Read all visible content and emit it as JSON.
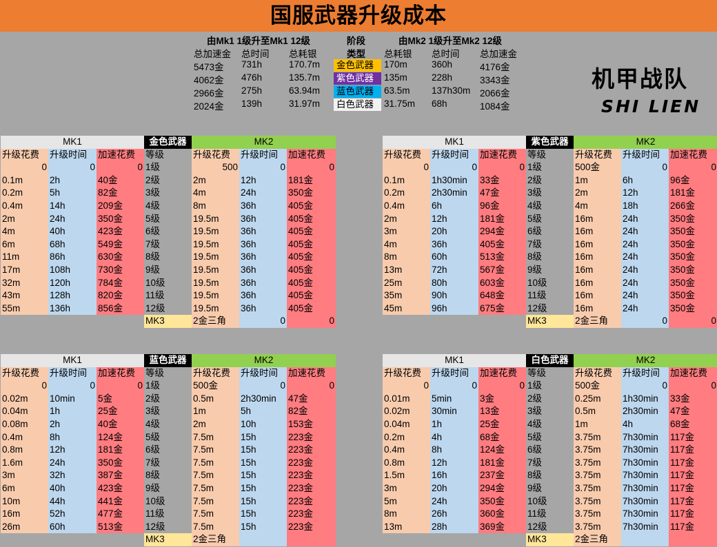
{
  "title": "国服武器升级成本",
  "logo": {
    "cn": "机甲战队",
    "en": "SHI LIEN"
  },
  "summary": {
    "left_header": "由Mk1 1级升至Mk1 12级",
    "mid_header1": "阶段",
    "mid_header2": "类型",
    "right_header": "由Mk2 1级升至Mk2 12级",
    "left_cols": [
      "总加速金",
      "总时间",
      "总耗银"
    ],
    "right_cols": [
      "总耗银",
      "总时间",
      "总加速金"
    ],
    "rows": [
      {
        "l": [
          "5473金",
          "731h",
          "170.7m"
        ],
        "type": "金色武器",
        "color": "#ffc000",
        "r": [
          "170m",
          "360h",
          "4176金"
        ]
      },
      {
        "l": [
          "4062金",
          "476h",
          "135.7m"
        ],
        "type": "紫色武器",
        "color": "#7030a0",
        "r": [
          "135m",
          "228h",
          "3343金"
        ]
      },
      {
        "l": [
          "2966金",
          "275h",
          "63.94m"
        ],
        "type": "蓝色武器",
        "color": "#00b0f0",
        "r": [
          "63.5m",
          "137h30m",
          "2066金"
        ]
      },
      {
        "l": [
          "2024金",
          "139h",
          "31.97m"
        ],
        "type": "白色武器",
        "color": "#f2f2f2",
        "r": [
          "31.75m",
          "68h",
          "1084金"
        ]
      }
    ]
  },
  "colors": {
    "cost": "#f8cbad",
    "time": "#bdd7ee",
    "speed": "#ff7c80",
    "mk1_header": "#e7e6e6",
    "mk2_header": "#92d050",
    "mk3": "#ffe699",
    "level": "#a6a6a6"
  },
  "tables": [
    {
      "type_label": "金色武器",
      "mk1_label": "MK1",
      "mk2_label": "MK2",
      "col_labels": [
        "升级花费",
        "升级时间",
        "加速花费",
        "等级",
        "升级花费",
        "升级时间",
        "加速花费"
      ],
      "rows": [
        [
          "0",
          "0",
          "0",
          "1级",
          "500",
          "0",
          "0"
        ],
        [
          "0.1m",
          "2h",
          "40金",
          "2级",
          "2m",
          "12h",
          "181金"
        ],
        [
          "0.2m",
          "5h",
          "82金",
          "3级",
          "4m",
          "24h",
          "350金"
        ],
        [
          "0.4m",
          "14h",
          "209金",
          "4级",
          "8m",
          "36h",
          "405金"
        ],
        [
          "2m",
          "24h",
          "350金",
          "5级",
          "19.5m",
          "36h",
          "405金"
        ],
        [
          "4m",
          "40h",
          "423金",
          "6级",
          "19.5m",
          "36h",
          "405金"
        ],
        [
          "6m",
          "68h",
          "549金",
          "7级",
          "19.5m",
          "36h",
          "405金"
        ],
        [
          "11m",
          "86h",
          "630金",
          "8级",
          "19.5m",
          "36h",
          "405金"
        ],
        [
          "17m",
          "108h",
          "730金",
          "9级",
          "19.5m",
          "36h",
          "405金"
        ],
        [
          "32m",
          "120h",
          "784金",
          "10级",
          "19.5m",
          "36h",
          "405金"
        ],
        [
          "43m",
          "128h",
          "820金",
          "11级",
          "19.5m",
          "36h",
          "405金"
        ],
        [
          "55m",
          "136h",
          "856金",
          "12级",
          "19.5m",
          "36h",
          "405金"
        ]
      ],
      "mk3_row": [
        "MK3",
        "2金三角",
        "0",
        "0"
      ]
    },
    {
      "type_label": "紫色武器",
      "mk1_label": "MK1",
      "mk2_label": "MK2",
      "col_labels": [
        "升级花费",
        "升级时间",
        "加速花费",
        "等级",
        "升级花费",
        "升级时间",
        "加速花费"
      ],
      "rows": [
        [
          "0",
          "0",
          "0",
          "1级",
          "500金",
          "0",
          "0"
        ],
        [
          "0.1m",
          "1h30min",
          "33金",
          "2级",
          "1m",
          "6h",
          "96金"
        ],
        [
          "0.2m",
          "2h30min",
          "47金",
          "3级",
          "2m",
          "12h",
          "181金"
        ],
        [
          "0.4m",
          "6h",
          "96金",
          "4级",
          "4m",
          "18h",
          "266金"
        ],
        [
          "2m",
          "12h",
          "181金",
          "5级",
          "16m",
          "24h",
          "350金"
        ],
        [
          "3m",
          "20h",
          "294金",
          "6级",
          "16m",
          "24h",
          "350金"
        ],
        [
          "4m",
          "36h",
          "405金",
          "7级",
          "16m",
          "24h",
          "350金"
        ],
        [
          "8m",
          "60h",
          "513金",
          "8级",
          "16m",
          "24h",
          "350金"
        ],
        [
          "13m",
          "72h",
          "567金",
          "9级",
          "16m",
          "24h",
          "350金"
        ],
        [
          "25m",
          "80h",
          "603金",
          "10级",
          "16m",
          "24h",
          "350金"
        ],
        [
          "35m",
          "90h",
          "648金",
          "11级",
          "16m",
          "24h",
          "350金"
        ],
        [
          "45m",
          "96h",
          "675金",
          "12级",
          "16m",
          "24h",
          "350金"
        ]
      ],
      "mk3_row": [
        "MK3",
        "2金三角",
        "0",
        "0"
      ]
    },
    {
      "type_label": "蓝色武器",
      "mk1_label": "MK1",
      "mk2_label": "MK2",
      "col_labels": [
        "升级花费",
        "升级时间",
        "加速花费",
        "等级",
        "升级花费",
        "升级时间",
        "加速花费"
      ],
      "rows": [
        [
          "0",
          "0",
          "0",
          "1级",
          "500金",
          "0",
          "0"
        ],
        [
          "0.02m",
          "10min",
          "5金",
          "2级",
          "0.5m",
          "2h30min",
          "47金"
        ],
        [
          "0.04m",
          "1h",
          "25金",
          "3级",
          "1m",
          "5h",
          "82金"
        ],
        [
          "0.08m",
          "2h",
          "40金",
          "4级",
          "2m",
          "10h",
          "153金"
        ],
        [
          "0.4m",
          "8h",
          "124金",
          "5级",
          "7.5m",
          "15h",
          "223金"
        ],
        [
          "0.8m",
          "12h",
          "181金",
          "6级",
          "7.5m",
          "15h",
          "223金"
        ],
        [
          "1.6m",
          "24h",
          "350金",
          "7级",
          "7.5m",
          "15h",
          "223金"
        ],
        [
          "3m",
          "32h",
          "387金",
          "8级",
          "7.5m",
          "15h",
          "223金"
        ],
        [
          "6m",
          "40h",
          "423金",
          "9级",
          "7.5m",
          "15h",
          "223金"
        ],
        [
          "10m",
          "44h",
          "441金",
          "10级",
          "7.5m",
          "15h",
          "223金"
        ],
        [
          "16m",
          "52h",
          "477金",
          "11级",
          "7.5m",
          "15h",
          "223金"
        ],
        [
          "26m",
          "60h",
          "513金",
          "12级",
          "7.5m",
          "15h",
          "223金"
        ]
      ],
      "mk3_row": [
        "MK3",
        "2金三角",
        "",
        ""
      ]
    },
    {
      "type_label": "白色武器",
      "mk1_label": "MK1",
      "mk2_label": "MK2",
      "col_labels": [
        "升级花费",
        "升级时间",
        "加速花费",
        "等级",
        "升级花费",
        "升级时间",
        "加速花费"
      ],
      "rows": [
        [
          "0",
          "0",
          "0",
          "1级",
          "500金",
          "0",
          "0"
        ],
        [
          "0.01m",
          "5min",
          "3金",
          "2级",
          "0.25m",
          "1h30min",
          "33金"
        ],
        [
          "0.02m",
          "30min",
          "13金",
          "3级",
          "0.5m",
          "2h30min",
          "47金"
        ],
        [
          "0.04m",
          "1h",
          "25金",
          "4级",
          "1m",
          "4h",
          "68金"
        ],
        [
          "0.2m",
          "4h",
          "68金",
          "5级",
          "3.75m",
          "7h30min",
          "117金"
        ],
        [
          "0.4m",
          "8h",
          "124金",
          "6级",
          "3.75m",
          "7h30min",
          "117金"
        ],
        [
          "0.8m",
          "12h",
          "181金",
          "7级",
          "3.75m",
          "7h30min",
          "117金"
        ],
        [
          "1.5m",
          "16h",
          "237金",
          "8级",
          "3.75m",
          "7h30min",
          "117金"
        ],
        [
          "3m",
          "20h",
          "294金",
          "9级",
          "3.75m",
          "7h30min",
          "117金"
        ],
        [
          "5m",
          "24h",
          "350金",
          "10级",
          "3.75m",
          "7h30min",
          "117金"
        ],
        [
          "8m",
          "26h",
          "360金",
          "11级",
          "3.75m",
          "7h30min",
          "117金"
        ],
        [
          "13m",
          "28h",
          "369金",
          "12级",
          "3.75m",
          "7h30min",
          "117金"
        ]
      ],
      "mk3_row": [
        "MK3",
        "2金三角",
        "",
        ""
      ]
    }
  ]
}
